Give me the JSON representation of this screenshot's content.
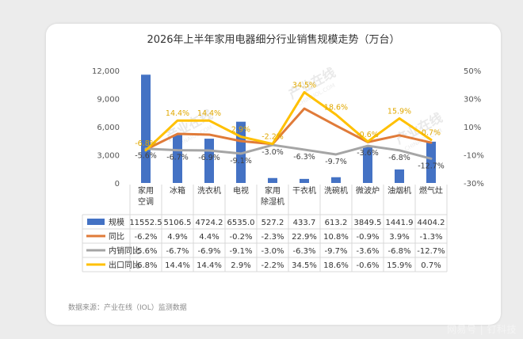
{
  "chart_data": {
    "type": "bar",
    "title": "2026年上半年家用电器细分行业销售规模走势（万台）",
    "categories": [
      [
        "家用",
        "空调"
      ],
      [
        "冰箱"
      ],
      [
        "洗衣机"
      ],
      [
        "电视"
      ],
      [
        "家用",
        "除湿机"
      ],
      [
        "干衣机"
      ],
      [
        "洗碗机"
      ],
      [
        "微波炉"
      ],
      [
        "油烟机"
      ],
      [
        "燃气灶"
      ]
    ],
    "left_axis": {
      "ticks": [
        "0",
        "3,000",
        "6,000",
        "9,000",
        "12,000"
      ],
      "min": 0,
      "max": 12000
    },
    "right_axis": {
      "ticks": [
        "-30%",
        "-10%",
        "10%",
        "30%",
        "50%"
      ],
      "min": -30,
      "max": 50
    },
    "series": [
      {
        "name": "规模",
        "kind": "bar",
        "axis": "left",
        "color": "#4472c4",
        "values": [
          11552.5,
          5106.5,
          4724.2,
          6535.0,
          527.2,
          433.7,
          613.2,
          3849.5,
          1441.9,
          4404.2
        ],
        "table_labels": [
          "11552.5",
          "5106.5",
          "4724.2",
          "6535.0",
          "527.2",
          "433.7",
          "613.2",
          "3849.5",
          "1441.9",
          "4404.2"
        ]
      },
      {
        "name": "同比",
        "kind": "line",
        "axis": "right",
        "color": "#e07b39",
        "values": [
          -6.2,
          4.9,
          4.4,
          -0.2,
          -2.3,
          22.9,
          10.8,
          -0.9,
          3.9,
          -1.3
        ],
        "table_labels": [
          "-6.2%",
          "4.9%",
          "4.4%",
          "-0.2%",
          "-2.3%",
          "22.9%",
          "10.8%",
          "-0.9%",
          "3.9%",
          "-1.3%"
        ]
      },
      {
        "name": "内销同比",
        "kind": "line",
        "axis": "right",
        "color": "#a5a5a5",
        "values": [
          -5.6,
          -6.7,
          -6.9,
          -9.1,
          -3.0,
          -6.3,
          -9.7,
          -3.6,
          -6.8,
          -12.7
        ],
        "table_labels": [
          "-5.6%",
          "-6.7%",
          "-6.9%",
          "-9.1%",
          "-3.0%",
          "-6.3%",
          "-9.7%",
          "-3.6%",
          "-6.8%",
          "-12.7%"
        ],
        "point_labels": [
          "-5.6%",
          "-6.7%",
          "-6.9%",
          "-9.1%",
          "-3.0%",
          "-6.3%",
          "-9.7%",
          "-3.6%",
          "-6.8%",
          "-12.7%"
        ],
        "point_label_color": "#404040"
      },
      {
        "name": "出口同比",
        "kind": "line",
        "axis": "right",
        "color": "#ffc000",
        "values": [
          -6.8,
          14.4,
          14.4,
          2.9,
          -2.2,
          34.5,
          18.6,
          -0.6,
          15.9,
          0.7
        ],
        "table_labels": [
          "-6.8%",
          "14.4%",
          "14.4%",
          "2.9%",
          "-2.2%",
          "34.5%",
          "18.6%",
          "-0.6%",
          "15.9%",
          "0.7%"
        ],
        "point_labels": [
          "-6.8%",
          "14.4%",
          "14.4%",
          "2.9%",
          "-2.2%",
          "34.5%",
          "18.6%",
          "-0.6%",
          "15.9%",
          "0.7%"
        ],
        "point_label_color": "#e0a800"
      }
    ],
    "source_note": "数据来源：产业在线（IOL）监测数据",
    "watermark": "产业在线",
    "watermark_url": "CHINAIOL.COM",
    "grid": false
  },
  "footer_watermark": "网易号 | 钉科技"
}
